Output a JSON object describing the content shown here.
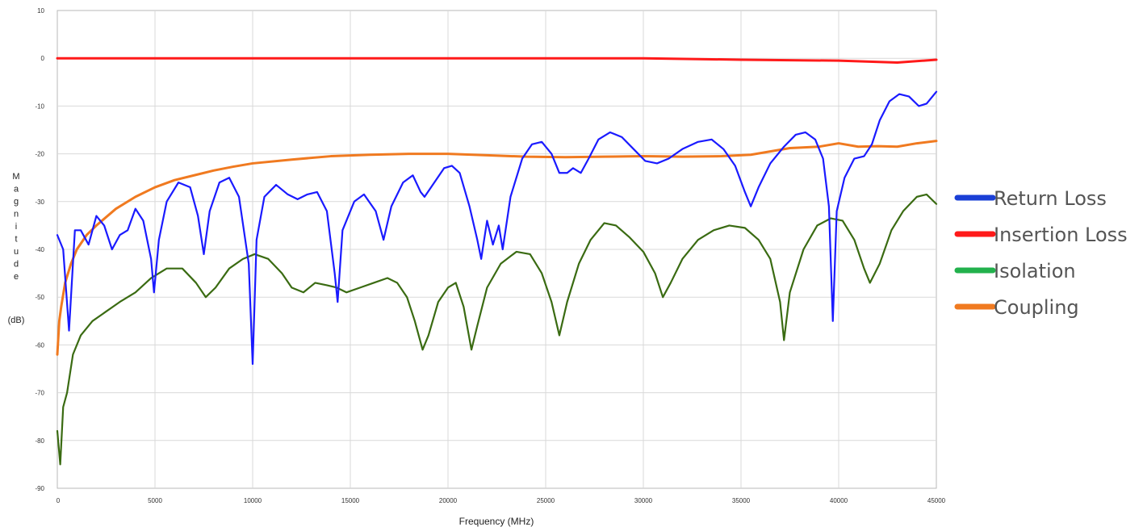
{
  "chart_data": {
    "type": "line",
    "xlabel": "Frequency (MHz)",
    "ylabel_letters": [
      "M",
      "a",
      "g",
      "n",
      "i",
      "t",
      "u",
      "d",
      "e"
    ],
    "ylabel_unit": "(dB)",
    "xlim": [
      0,
      45000
    ],
    "ylim": [
      -90,
      10
    ],
    "x_ticks": [
      0,
      5000,
      10000,
      15000,
      20000,
      25000,
      30000,
      35000,
      40000,
      45000
    ],
    "y_ticks": [
      10,
      0,
      -10,
      -20,
      -30,
      -40,
      -50,
      -60,
      -70,
      -80,
      -90
    ],
    "grid": true,
    "legend_position": "right",
    "series": [
      {
        "name": "Return Loss",
        "color": "#1a1aff",
        "points": [
          [
            0,
            -37
          ],
          [
            300,
            -40
          ],
          [
            600,
            -57
          ],
          [
            900,
            -36
          ],
          [
            1200,
            -36
          ],
          [
            1600,
            -39
          ],
          [
            2000,
            -33
          ],
          [
            2400,
            -35
          ],
          [
            2800,
            -40
          ],
          [
            3200,
            -37
          ],
          [
            3600,
            -36
          ],
          [
            4000,
            -31.5
          ],
          [
            4400,
            -34
          ],
          [
            4800,
            -42
          ],
          [
            4950,
            -49
          ],
          [
            5200,
            -38
          ],
          [
            5600,
            -30
          ],
          [
            6200,
            -26
          ],
          [
            6800,
            -27
          ],
          [
            7200,
            -33
          ],
          [
            7500,
            -41
          ],
          [
            7800,
            -32
          ],
          [
            8300,
            -26
          ],
          [
            8800,
            -25
          ],
          [
            9300,
            -29
          ],
          [
            9800,
            -43
          ],
          [
            10000,
            -64
          ],
          [
            10200,
            -38
          ],
          [
            10600,
            -29
          ],
          [
            11200,
            -26.5
          ],
          [
            11800,
            -28.5
          ],
          [
            12300,
            -29.5
          ],
          [
            12800,
            -28.5
          ],
          [
            13300,
            -28
          ],
          [
            13800,
            -32
          ],
          [
            14200,
            -45
          ],
          [
            14350,
            -51
          ],
          [
            14600,
            -36
          ],
          [
            15200,
            -30
          ],
          [
            15700,
            -28.5
          ],
          [
            16300,
            -32
          ],
          [
            16700,
            -38
          ],
          [
            17100,
            -31
          ],
          [
            17700,
            -26
          ],
          [
            18200,
            -24.5
          ],
          [
            18600,
            -28
          ],
          [
            18800,
            -29
          ],
          [
            19300,
            -26
          ],
          [
            19800,
            -23
          ],
          [
            20200,
            -22.5
          ],
          [
            20600,
            -24
          ],
          [
            21100,
            -31
          ],
          [
            21500,
            -38
          ],
          [
            21700,
            -42
          ],
          [
            22000,
            -34
          ],
          [
            22300,
            -39
          ],
          [
            22600,
            -35
          ],
          [
            22800,
            -40
          ],
          [
            23200,
            -29
          ],
          [
            23800,
            -21
          ],
          [
            24300,
            -18
          ],
          [
            24800,
            -17.5
          ],
          [
            25300,
            -20
          ],
          [
            25700,
            -24
          ],
          [
            26100,
            -24
          ],
          [
            26400,
            -23
          ],
          [
            26800,
            -24
          ],
          [
            27200,
            -21
          ],
          [
            27700,
            -17
          ],
          [
            28300,
            -15.5
          ],
          [
            28900,
            -16.5
          ],
          [
            29500,
            -19
          ],
          [
            30100,
            -21.5
          ],
          [
            30700,
            -22
          ],
          [
            31300,
            -21
          ],
          [
            32000,
            -19
          ],
          [
            32800,
            -17.5
          ],
          [
            33500,
            -17
          ],
          [
            34100,
            -19
          ],
          [
            34700,
            -22.5
          ],
          [
            35200,
            -28
          ],
          [
            35500,
            -31
          ],
          [
            35900,
            -27
          ],
          [
            36500,
            -22
          ],
          [
            37200,
            -18.5
          ],
          [
            37800,
            -16
          ],
          [
            38300,
            -15.5
          ],
          [
            38800,
            -17
          ],
          [
            39200,
            -21
          ],
          [
            39500,
            -31
          ],
          [
            39700,
            -55
          ],
          [
            39900,
            -32
          ],
          [
            40300,
            -25
          ],
          [
            40800,
            -21
          ],
          [
            41300,
            -20.5
          ],
          [
            41700,
            -18
          ],
          [
            42100,
            -13
          ],
          [
            42600,
            -9
          ],
          [
            43100,
            -7.5
          ],
          [
            43600,
            -8
          ],
          [
            44100,
            -10
          ],
          [
            44500,
            -9.5
          ],
          [
            45000,
            -7
          ]
        ]
      },
      {
        "name": "Insertion Loss",
        "color": "#ff1a1a",
        "points": [
          [
            0,
            0
          ],
          [
            5000,
            0
          ],
          [
            10000,
            0
          ],
          [
            15000,
            0
          ],
          [
            20000,
            0
          ],
          [
            25000,
            0
          ],
          [
            30000,
            0
          ],
          [
            35000,
            -0.3
          ],
          [
            40000,
            -0.5
          ],
          [
            43000,
            -0.9
          ],
          [
            45000,
            -0.3
          ]
        ]
      },
      {
        "name": "Isolation",
        "color": "#3a6b12",
        "points": [
          [
            0,
            -78
          ],
          [
            150,
            -85
          ],
          [
            300,
            -73
          ],
          [
            500,
            -70
          ],
          [
            800,
            -62
          ],
          [
            1200,
            -58
          ],
          [
            1800,
            -55
          ],
          [
            2500,
            -53
          ],
          [
            3200,
            -51
          ],
          [
            4000,
            -49
          ],
          [
            4800,
            -46
          ],
          [
            5600,
            -44
          ],
          [
            6400,
            -44
          ],
          [
            7100,
            -47
          ],
          [
            7600,
            -50
          ],
          [
            8100,
            -48
          ],
          [
            8800,
            -44
          ],
          [
            9500,
            -42
          ],
          [
            10100,
            -41
          ],
          [
            10800,
            -42
          ],
          [
            11500,
            -45
          ],
          [
            12000,
            -48
          ],
          [
            12600,
            -49
          ],
          [
            13200,
            -47
          ],
          [
            13800,
            -47.5
          ],
          [
            14300,
            -48
          ],
          [
            14800,
            -49
          ],
          [
            15500,
            -48
          ],
          [
            16200,
            -47
          ],
          [
            16900,
            -46
          ],
          [
            17400,
            -47
          ],
          [
            17900,
            -50
          ],
          [
            18300,
            -55
          ],
          [
            18700,
            -61
          ],
          [
            19000,
            -58
          ],
          [
            19500,
            -51
          ],
          [
            20000,
            -48
          ],
          [
            20400,
            -47
          ],
          [
            20800,
            -52
          ],
          [
            21200,
            -61
          ],
          [
            21500,
            -56
          ],
          [
            22000,
            -48
          ],
          [
            22700,
            -43
          ],
          [
            23500,
            -40.5
          ],
          [
            24200,
            -41
          ],
          [
            24800,
            -45
          ],
          [
            25300,
            -51
          ],
          [
            25700,
            -58
          ],
          [
            26100,
            -51
          ],
          [
            26700,
            -43
          ],
          [
            27300,
            -38
          ],
          [
            28000,
            -34.5
          ],
          [
            28600,
            -35
          ],
          [
            29300,
            -37.5
          ],
          [
            30000,
            -40.5
          ],
          [
            30600,
            -45
          ],
          [
            31000,
            -50
          ],
          [
            31400,
            -47
          ],
          [
            32000,
            -42
          ],
          [
            32800,
            -38
          ],
          [
            33600,
            -36
          ],
          [
            34400,
            -35
          ],
          [
            35200,
            -35.5
          ],
          [
            35900,
            -38
          ],
          [
            36500,
            -42
          ],
          [
            37000,
            -51
          ],
          [
            37200,
            -59
          ],
          [
            37500,
            -49
          ],
          [
            38200,
            -40
          ],
          [
            38900,
            -35
          ],
          [
            39600,
            -33.5
          ],
          [
            40200,
            -34
          ],
          [
            40800,
            -38
          ],
          [
            41300,
            -44
          ],
          [
            41600,
            -47
          ],
          [
            42100,
            -43
          ],
          [
            42700,
            -36
          ],
          [
            43300,
            -32
          ],
          [
            44000,
            -29
          ],
          [
            44500,
            -28.5
          ],
          [
            45000,
            -30.5
          ]
        ]
      },
      {
        "name": "Coupling",
        "color": "#f07a20",
        "points": [
          [
            0,
            -62
          ],
          [
            100,
            -55
          ],
          [
            200,
            -52
          ],
          [
            400,
            -47
          ],
          [
            700,
            -43
          ],
          [
            1000,
            -40
          ],
          [
            1500,
            -37
          ],
          [
            2000,
            -35
          ],
          [
            3000,
            -31.5
          ],
          [
            4000,
            -29
          ],
          [
            5000,
            -27
          ],
          [
            6000,
            -25.5
          ],
          [
            7000,
            -24.5
          ],
          [
            8000,
            -23.5
          ],
          [
            9000,
            -22.7
          ],
          [
            10000,
            -22
          ],
          [
            12000,
            -21.2
          ],
          [
            14000,
            -20.5
          ],
          [
            16000,
            -20.2
          ],
          [
            18000,
            -20
          ],
          [
            20000,
            -20
          ],
          [
            22000,
            -20.3
          ],
          [
            24000,
            -20.6
          ],
          [
            26000,
            -20.7
          ],
          [
            28000,
            -20.6
          ],
          [
            30000,
            -20.5
          ],
          [
            32000,
            -20.6
          ],
          [
            34000,
            -20.5
          ],
          [
            35500,
            -20.2
          ],
          [
            36500,
            -19.5
          ],
          [
            37500,
            -18.8
          ],
          [
            39000,
            -18.5
          ],
          [
            40000,
            -17.8
          ],
          [
            41000,
            -18.5
          ],
          [
            42000,
            -18.4
          ],
          [
            43000,
            -18.5
          ],
          [
            44000,
            -17.8
          ],
          [
            45000,
            -17.3
          ]
        ]
      }
    ]
  }
}
